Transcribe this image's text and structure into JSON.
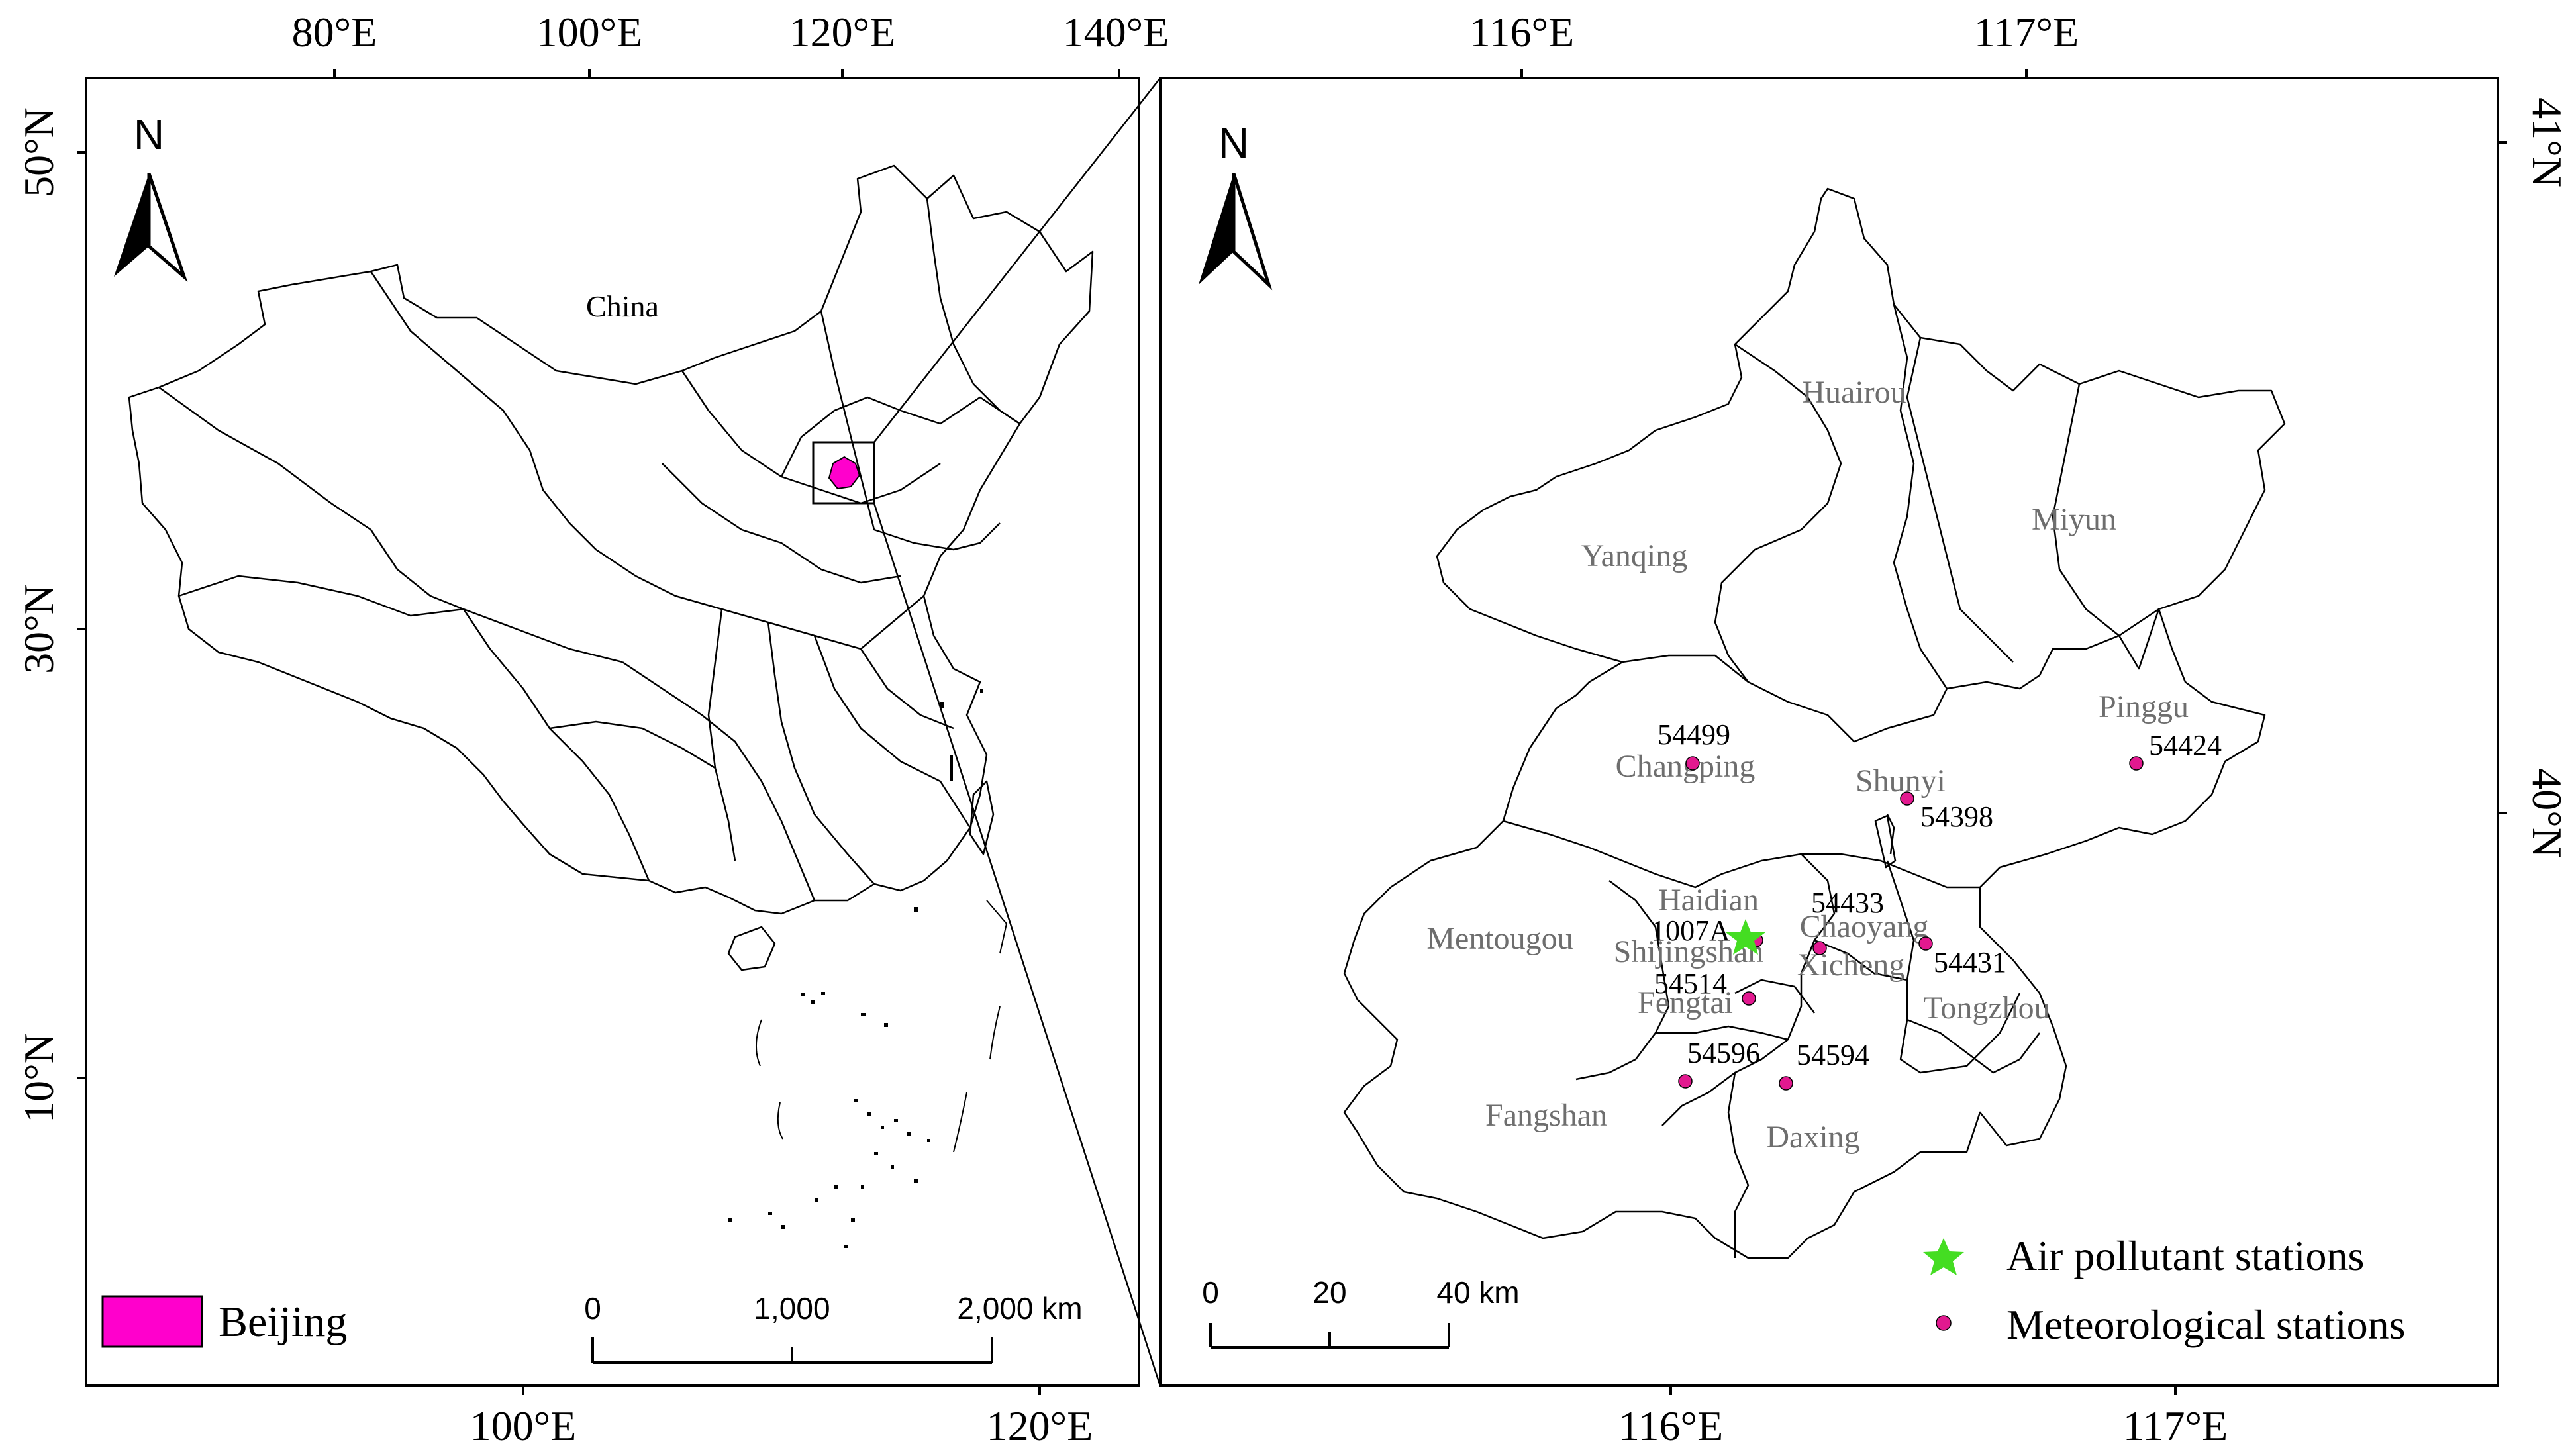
{
  "left_panel": {
    "country_label": "China",
    "north_label": "N",
    "top_ticks": [
      "80°E",
      "100°E",
      "120°E",
      "140°E"
    ],
    "bottom_ticks": [
      "100°E",
      "120°E"
    ],
    "left_ticks": [
      "50°N",
      "30°N",
      "10°N"
    ],
    "legend": {
      "label": "Beijing",
      "color": "#ff00cc"
    },
    "scale": {
      "labels": [
        "0",
        "1,000",
        "2,000 km"
      ]
    }
  },
  "right_panel": {
    "north_label": "N",
    "top_ticks": [
      "116°E",
      "117°E"
    ],
    "bottom_ticks": [
      "116°E",
      "117°E"
    ],
    "right_ticks": [
      "41°N",
      "40°N"
    ],
    "districts": [
      "Huairou",
      "Miyun",
      "Yanqing",
      "Pinggu",
      "Changping",
      "Shunyi",
      "Mentougou",
      "Haidian",
      "Chaoyang",
      "Shijingshan",
      "Xicheng",
      "Fengtai",
      "Tongzhou",
      "Fangshan",
      "Daxing"
    ],
    "stations": {
      "meteorological": [
        "54499",
        "54424",
        "54398",
        "54433",
        "54431",
        "54514",
        "54596",
        "54594"
      ],
      "air_pollutant": [
        "1007A"
      ]
    },
    "legend": {
      "air": {
        "label": "Air pollutant stations",
        "color": "#44dd22"
      },
      "met": {
        "label": "Meteorological stations",
        "color": "#e2198f"
      }
    },
    "scale": {
      "labels": [
        "0",
        "20",
        "40 km"
      ]
    }
  }
}
